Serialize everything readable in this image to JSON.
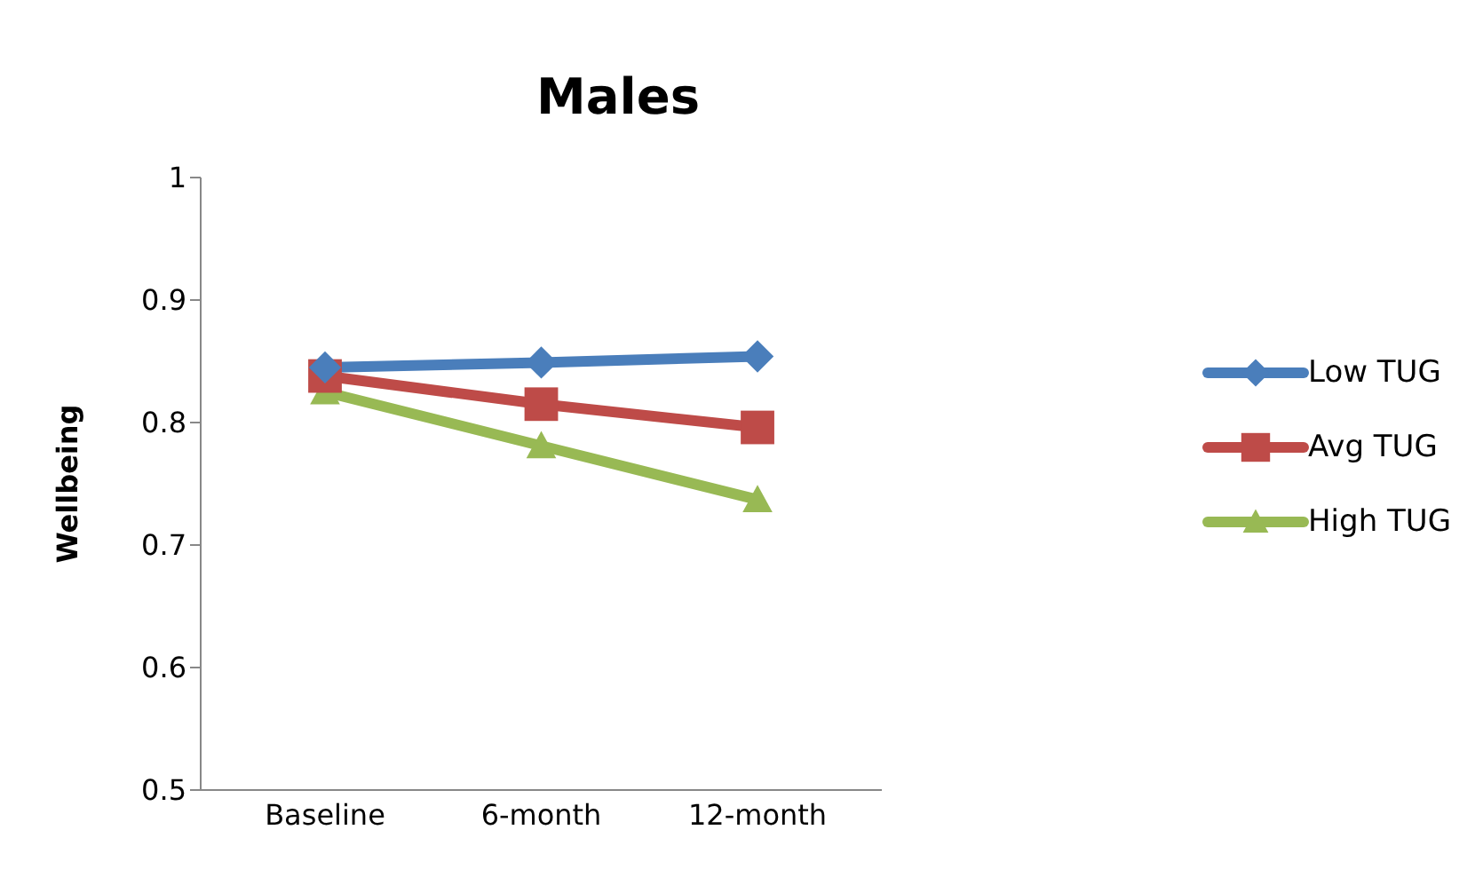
{
  "chart_data": {
    "type": "line",
    "title": "Males",
    "ylabel": "Wellbeing",
    "categories": [
      "Baseline",
      "6-month",
      "12-month"
    ],
    "series": [
      {
        "name": "Low TUG",
        "color": "#4a7ebb",
        "marker": "diamond",
        "values": [
          0.845,
          0.849,
          0.854
        ]
      },
      {
        "name": "Avg TUG",
        "color": "#be4b48",
        "marker": "square",
        "values": [
          0.838,
          0.815,
          0.796
        ]
      },
      {
        "name": "High TUG",
        "color": "#98b954",
        "marker": "triangle",
        "values": [
          0.825,
          0.781,
          0.737
        ]
      }
    ],
    "ylim": [
      0.5,
      1
    ],
    "yticks": [
      0.5,
      0.6,
      0.7,
      0.8,
      0.9,
      1
    ],
    "grid": false,
    "legend": "right"
  }
}
